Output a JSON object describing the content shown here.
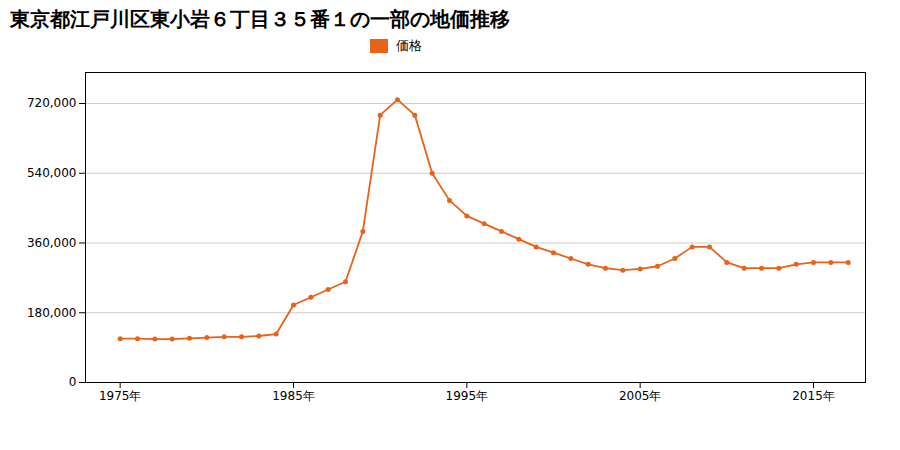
{
  "chart_data": {
    "type": "line",
    "title": "東京都江戸川区東小岩６丁目３５番１の一部の地価推移",
    "x": [
      1975,
      1976,
      1977,
      1978,
      1979,
      1980,
      1981,
      1982,
      1983,
      1984,
      1985,
      1986,
      1987,
      1988,
      1989,
      1990,
      1991,
      1992,
      1993,
      1994,
      1995,
      1996,
      1997,
      1998,
      1999,
      2000,
      2001,
      2002,
      2003,
      2004,
      2005,
      2006,
      2007,
      2008,
      2009,
      2010,
      2011,
      2012,
      2013,
      2014,
      2015,
      2016,
      2017
    ],
    "series": [
      {
        "name": "価格",
        "color": "#E8621A",
        "marker": "circle",
        "values": [
          113000,
          113000,
          112000,
          112000,
          114000,
          116000,
          118000,
          118000,
          120000,
          125000,
          200000,
          220000,
          240000,
          260000,
          390000,
          690000,
          730000,
          690000,
          540000,
          470000,
          430000,
          410000,
          390000,
          370000,
          350000,
          335000,
          320000,
          305000,
          295000,
          290000,
          293000,
          300000,
          320000,
          350000,
          350000,
          310000,
          295000,
          295000,
          295000,
          305000,
          310000,
          310000,
          310000
        ]
      }
    ],
    "xlim": [
      1973,
      2018
    ],
    "xticks": [
      {
        "value": 1975,
        "label": "1975年"
      },
      {
        "value": 1985,
        "label": "1985年"
      },
      {
        "value": 1995,
        "label": "1995年"
      },
      {
        "value": 2005,
        "label": "2005年"
      },
      {
        "value": 2015,
        "label": "2015年"
      }
    ],
    "ylim": [
      0,
      800000
    ],
    "yticks": [
      0,
      {
        "value": 180000,
        "label": "180,000"
      },
      {
        "value": 360000,
        "label": "360,000"
      },
      {
        "value": 540000,
        "label": "540,000"
      },
      {
        "value": 720000,
        "label": "720,000"
      }
    ],
    "grid": "y",
    "legend": "top"
  }
}
